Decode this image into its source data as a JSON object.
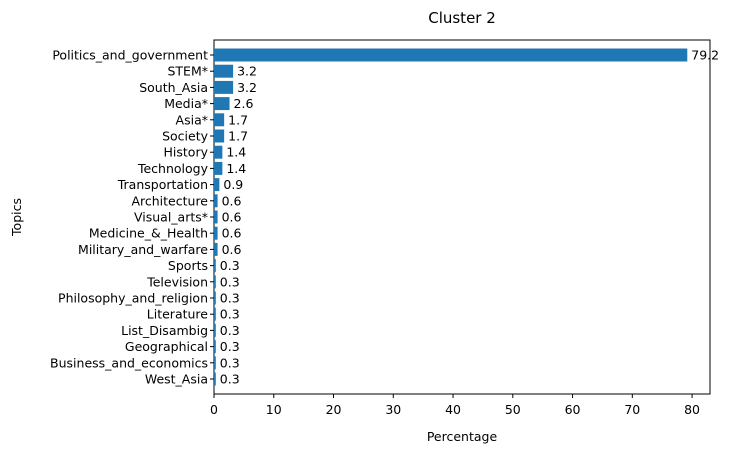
{
  "chart_data": {
    "type": "bar",
    "orientation": "horizontal",
    "title": "Cluster 2",
    "xlabel": "Percentage",
    "ylabel": "Topics",
    "xlim": [
      0,
      83
    ],
    "xticks": [
      0,
      10,
      20,
      30,
      40,
      50,
      60,
      70,
      80
    ],
    "grid": false,
    "legend": "none",
    "bar_color": "#1f77b4",
    "categories": [
      "Politics_and_government",
      "STEM*",
      "South_Asia",
      "Media*",
      "Asia*",
      "Society",
      "History",
      "Technology",
      "Transportation",
      "Architecture",
      "Visual_arts*",
      "Medicine_&_Health",
      "Military_and_warfare",
      "Sports",
      "Television",
      "Philosophy_and_religion",
      "Literature",
      "List_Disambig",
      "Geographical",
      "Business_and_economics",
      "West_Asia"
    ],
    "values": [
      79.2,
      3.2,
      3.2,
      2.6,
      1.7,
      1.7,
      1.4,
      1.4,
      0.9,
      0.6,
      0.6,
      0.6,
      0.6,
      0.3,
      0.3,
      0.3,
      0.3,
      0.3,
      0.3,
      0.3,
      0.3
    ],
    "data_labels": [
      "79.2",
      "3.2",
      "3.2",
      "2.6",
      "1.7",
      "1.7",
      "1.4",
      "1.4",
      "0.9",
      "0.6",
      "0.6",
      "0.6",
      "0.6",
      "0.3",
      "0.3",
      "0.3",
      "0.3",
      "0.3",
      "0.3",
      "0.3",
      "0.3"
    ]
  }
}
